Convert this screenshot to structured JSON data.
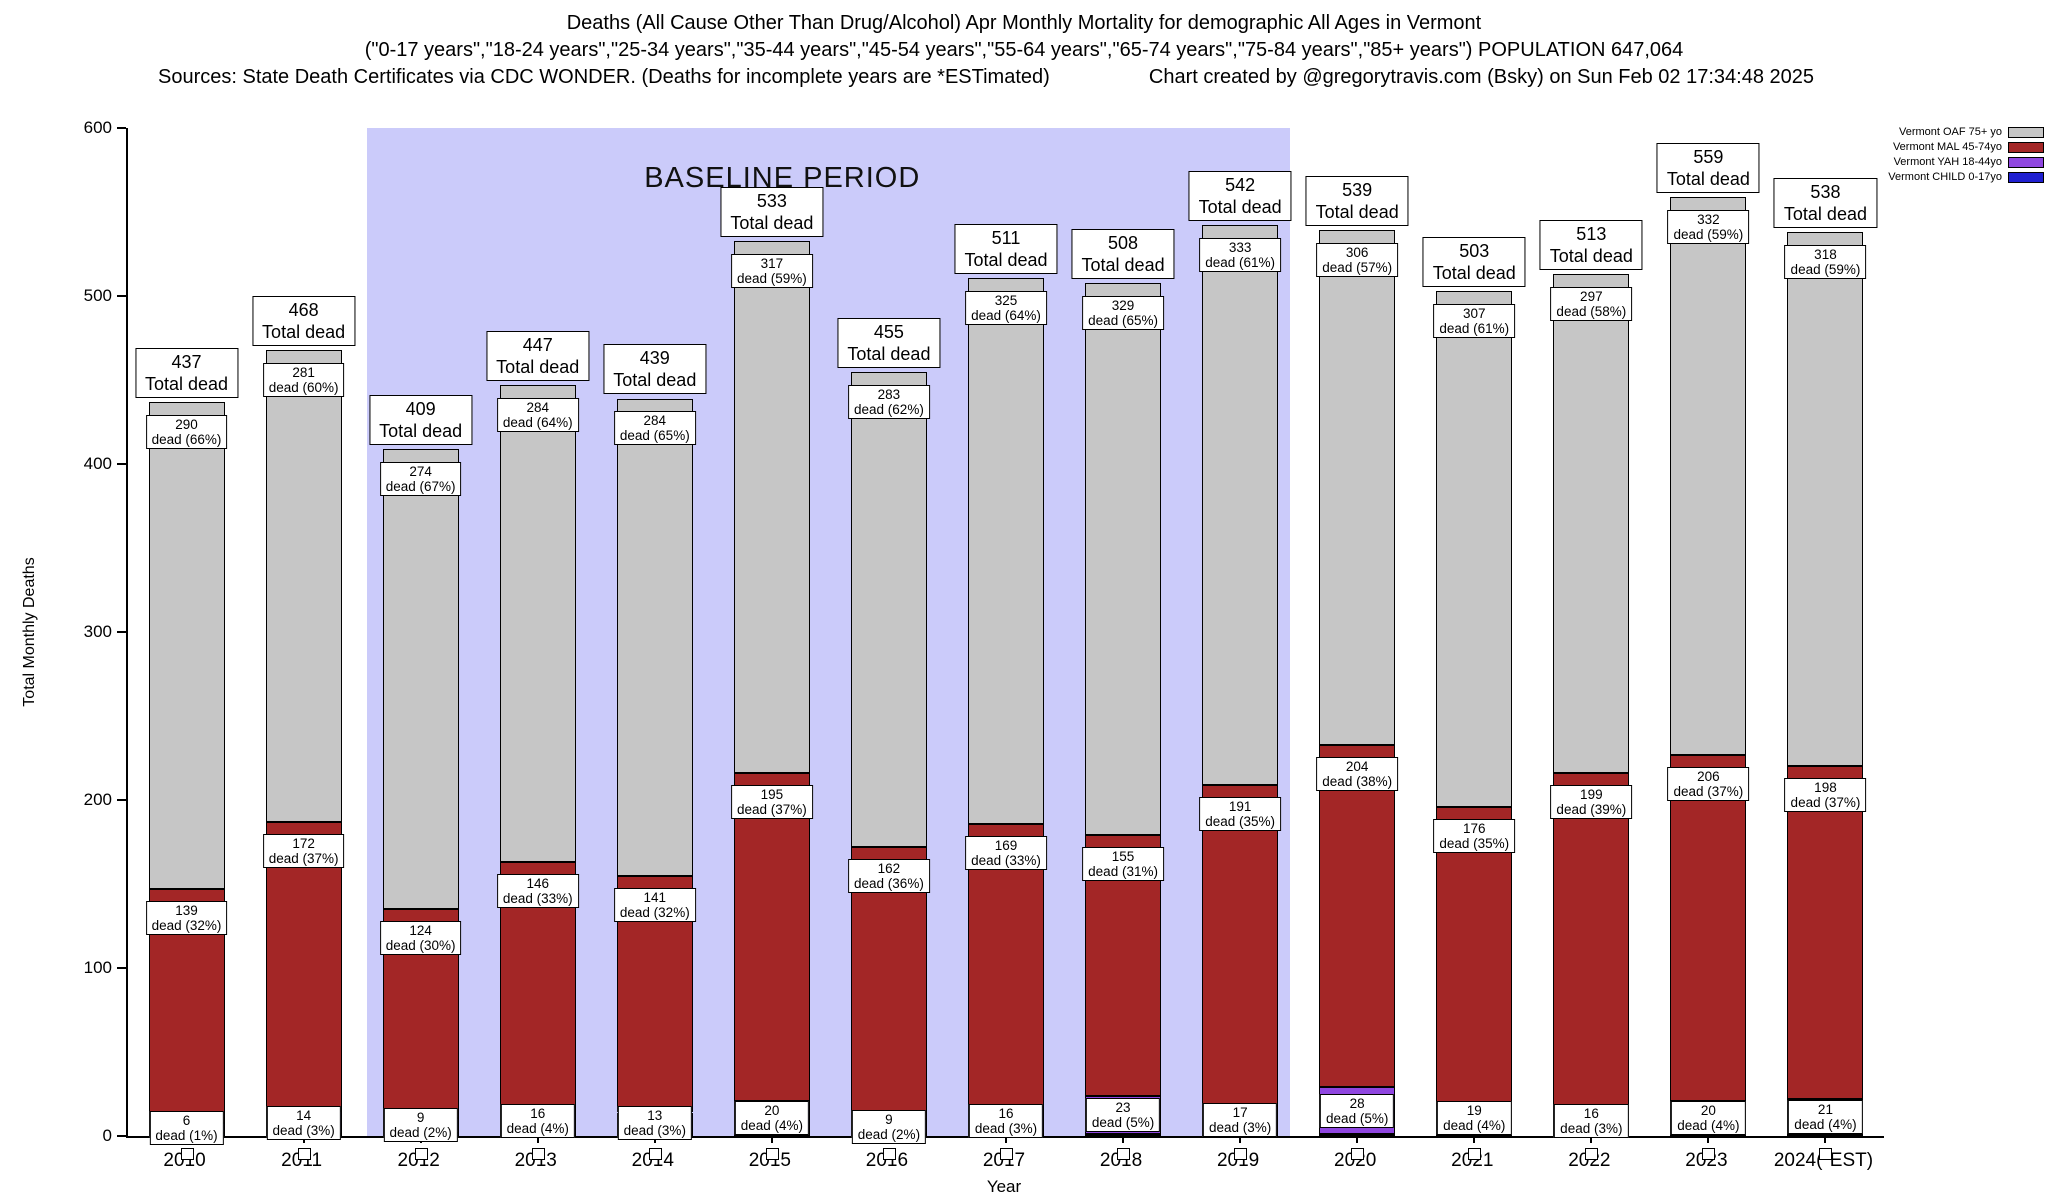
{
  "header": {
    "title_line1": "Deaths (All Cause Other Than Drug/Alcohol) Apr Monthly Mortality for demographic All Ages in Vermont",
    "title_line2": "(\"0-17 years\",\"18-24 years\",\"25-34 years\",\"35-44 years\",\"45-54 years\",\"55-64 years\",\"65-74 years\",\"75-84 years\",\"85+ years\") POPULATION 647,064",
    "sources": "Sources: State Death Certificates via CDC WONDER. (Deaths for incomplete years are *ESTimated)",
    "credit": "Chart created by @gregorytravis.com (Bsky) on Sun Feb 02 17:34:48 2025"
  },
  "chart_data": {
    "type": "bar",
    "stacked": true,
    "title": "Deaths (All Cause Other Than Drug/Alcohol) Apr Monthly Mortality for demographic All Ages in Vermont",
    "xlabel": "Year",
    "ylabel": "Total Monthly Deaths",
    "ylim": [
      0,
      600
    ],
    "yticks": [
      0,
      100,
      200,
      300,
      400,
      500,
      600
    ],
    "grid": false,
    "legend_position": "top-right",
    "categories": [
      "2010",
      "2011",
      "2012",
      "2013",
      "2014",
      "2015",
      "2016",
      "2017",
      "2018",
      "2019",
      "2020",
      "2021",
      "2022",
      "2023",
      "2024(*EST)"
    ],
    "totals": [
      437,
      468,
      409,
      447,
      439,
      533,
      455,
      511,
      508,
      542,
      539,
      503,
      513,
      559,
      538
    ],
    "baseline_period": {
      "label": "BASELINE PERIOD",
      "start_index": 2,
      "end_index": 9,
      "band_color": "#cbcbfa"
    },
    "labels": {
      "total_suffix": "Total dead",
      "segment_suffix": "dead ({pct}%)"
    },
    "series": [
      {
        "key": "oaf",
        "name": "Vermont OAF 75+ yo",
        "color": "#c6c6c6",
        "values": [
          290,
          281,
          274,
          284,
          284,
          317,
          283,
          325,
          329,
          333,
          306,
          307,
          297,
          332,
          318
        ],
        "pct": [
          66,
          60,
          67,
          64,
          65,
          59,
          62,
          64,
          65,
          61,
          57,
          61,
          58,
          59,
          59
        ]
      },
      {
        "key": "mal",
        "name": "Vermont MAL 45-74yo",
        "color": "#a32626",
        "values": [
          139,
          172,
          124,
          146,
          141,
          195,
          162,
          169,
          155,
          191,
          204,
          176,
          199,
          206,
          198
        ],
        "pct": [
          32,
          37,
          30,
          33,
          32,
          37,
          36,
          33,
          31,
          35,
          38,
          35,
          39,
          37,
          37
        ]
      },
      {
        "key": "yah",
        "name": "Vermont YAH 18-44yo",
        "color": "#8f46e0",
        "values": [
          6,
          14,
          9,
          16,
          13,
          20,
          9,
          16,
          23,
          17,
          28,
          19,
          16,
          20,
          21
        ],
        "pct": [
          1,
          3,
          2,
          4,
          3,
          4,
          2,
          3,
          5,
          3,
          5,
          4,
          3,
          4,
          4
        ]
      },
      {
        "key": "child",
        "name": "Vermont CHILD 0-17yo",
        "color": "#1f1fd0",
        "values": [
          2,
          1,
          2,
          1,
          1,
          1,
          1,
          1,
          1,
          1,
          1,
          1,
          1,
          1,
          1
        ]
      }
    ]
  }
}
